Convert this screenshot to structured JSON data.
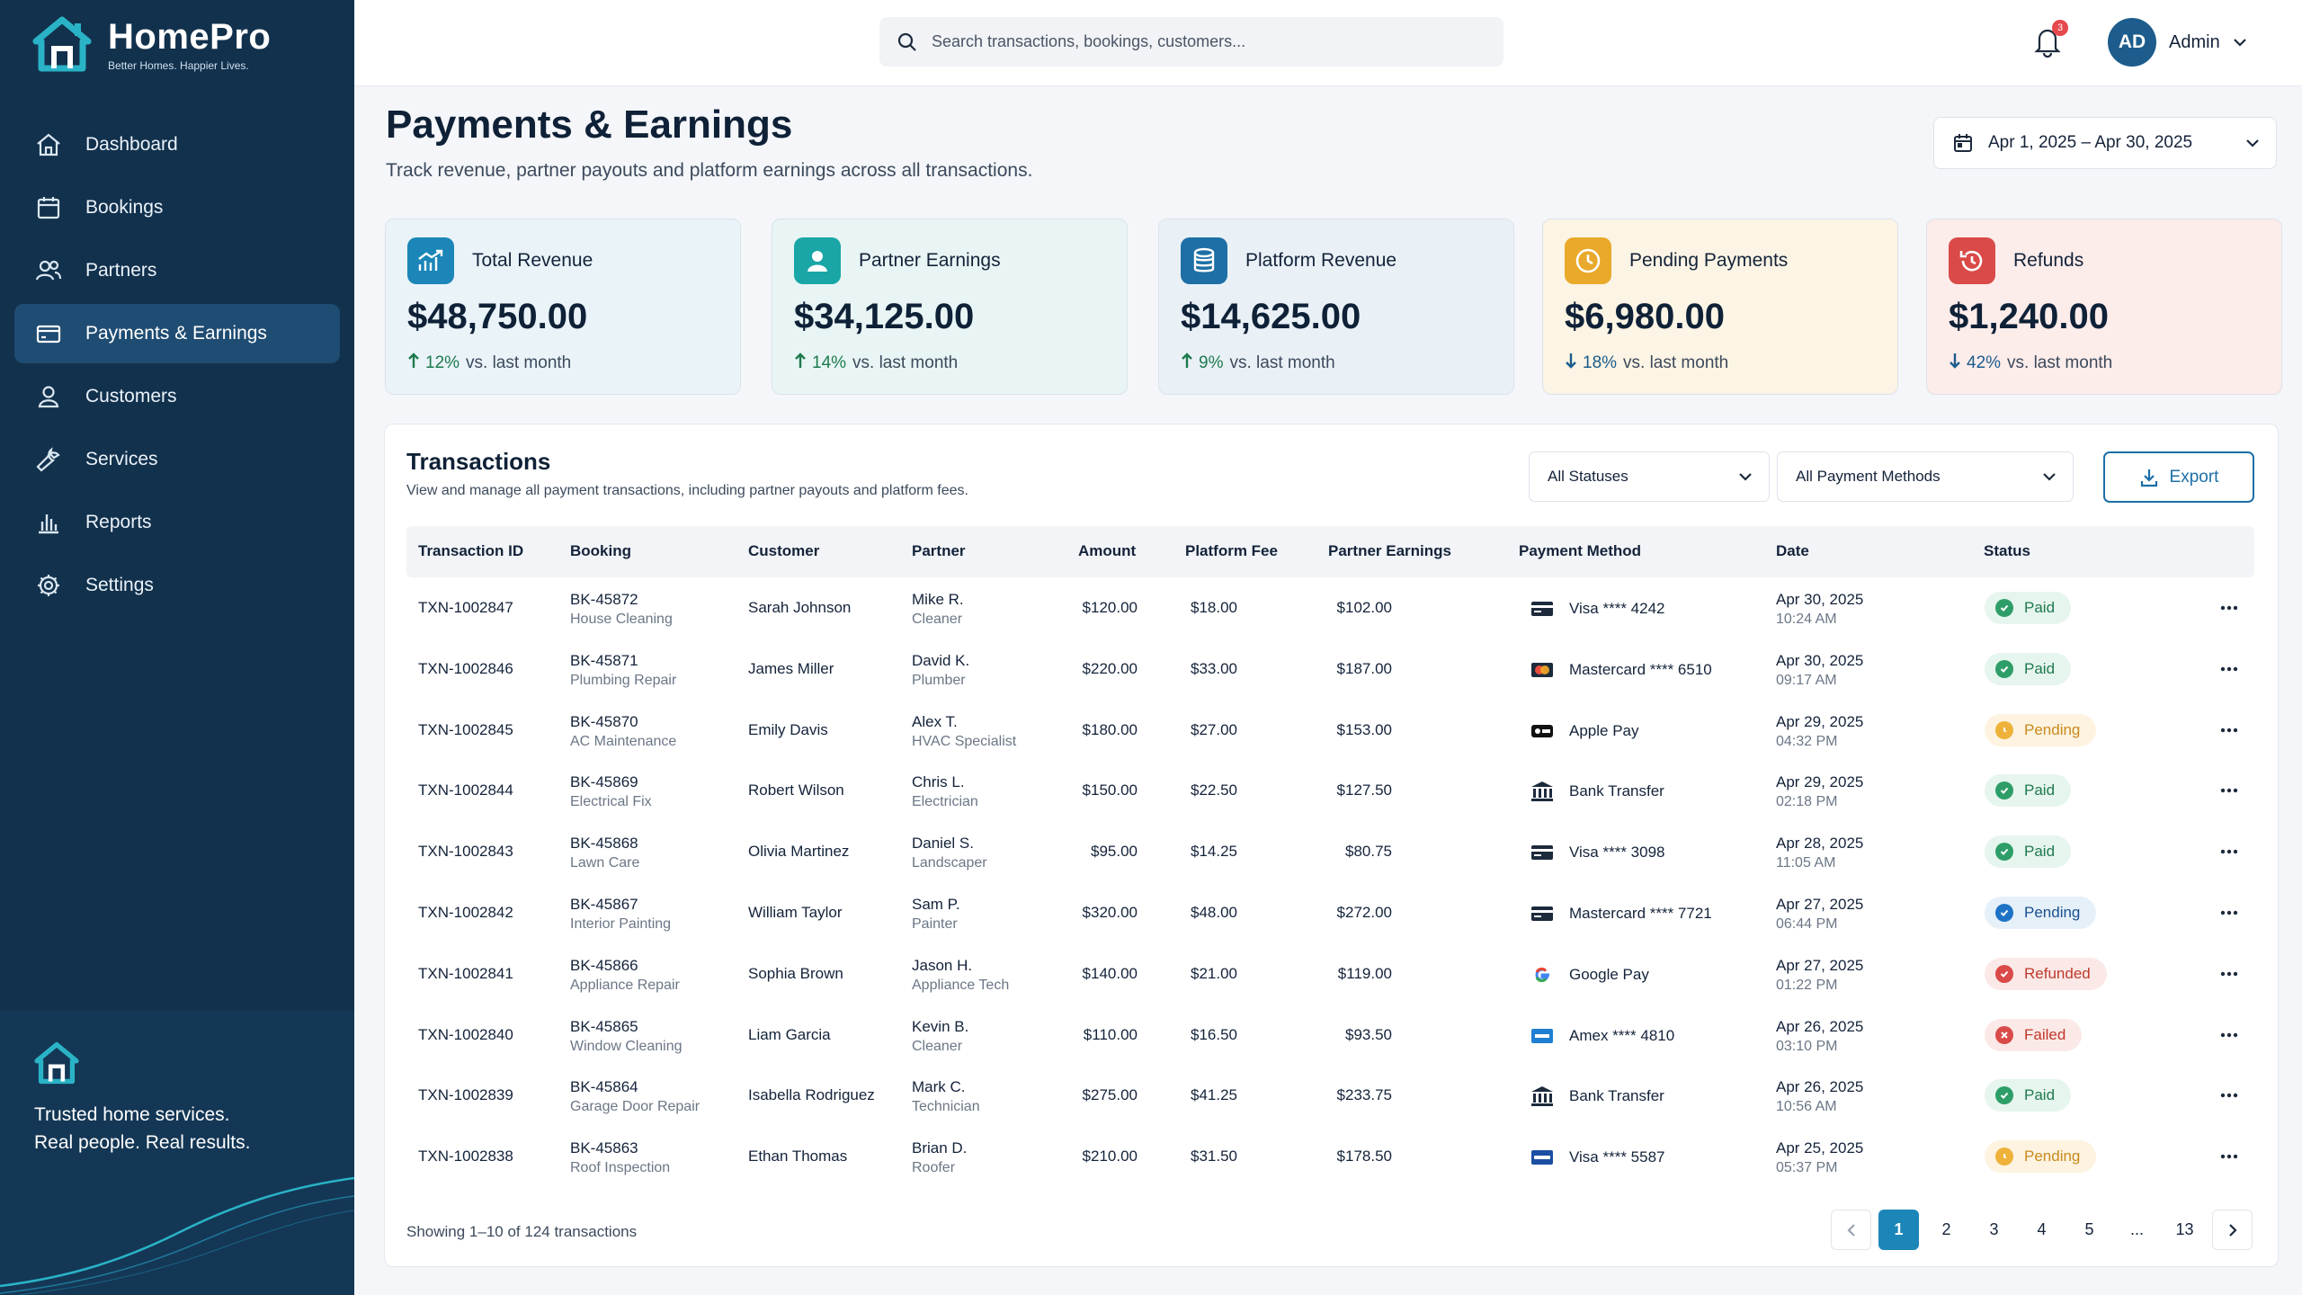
{
  "app": {
    "name": "HomePro",
    "tagline": "Better Homes. Happier Lives."
  },
  "sidebar": {
    "items": [
      {
        "label": "Dashboard",
        "icon": "home-icon",
        "active": false
      },
      {
        "label": "Bookings",
        "icon": "calendar-icon",
        "active": false
      },
      {
        "label": "Partners",
        "icon": "users-icon",
        "active": false
      },
      {
        "label": "Payments & Earnings",
        "icon": "credit-card-icon",
        "active": true
      },
      {
        "label": "Customers",
        "icon": "user-icon",
        "active": false
      },
      {
        "label": "Services",
        "icon": "wrench-icon",
        "active": false
      },
      {
        "label": "Reports",
        "icon": "bar-chart-icon",
        "active": false
      },
      {
        "label": "Settings",
        "icon": "gear-icon",
        "active": false
      }
    ],
    "footer_line1": "Trusted home services.",
    "footer_line2": "Real people. Real results."
  },
  "header": {
    "search_placeholder": "Search transactions, bookings, customers...",
    "notifications_count": "3",
    "user_initials": "AD",
    "user_name": "Admin"
  },
  "page": {
    "title": "Payments & Earnings",
    "subtitle": "Track revenue, partner payouts and platform earnings across all transactions.",
    "date_range": "Apr 1, 2025 – Apr 30, 2025"
  },
  "kpis": [
    {
      "label": "Total Revenue",
      "value": "$48,750.00",
      "pct": "12%",
      "rest": "vs. last month",
      "direction": "up",
      "icon": "chart-up-icon",
      "accent": "#1c86b8",
      "bg": "#e9f3f8"
    },
    {
      "label": "Partner Earnings",
      "value": "$34,125.00",
      "pct": "14%",
      "rest": "vs. last month",
      "direction": "up",
      "icon": "user-icon",
      "accent": "#1aa6a6",
      "bg": "#e8f5f4"
    },
    {
      "label": "Platform Revenue",
      "value": "$14,625.00",
      "pct": "9%",
      "rest": "vs. last month",
      "direction": "up",
      "icon": "database-icon",
      "accent": "#1d6fa5",
      "bg": "#e9f1f7"
    },
    {
      "label": "Pending Payments",
      "value": "$6,980.00",
      "pct": "18%",
      "rest": "vs. last month",
      "direction": "down",
      "icon": "clock-icon",
      "accent": "#e9a92a",
      "bg": "#fcf4e4"
    },
    {
      "label": "Refunds",
      "value": "$1,240.00",
      "pct": "42%",
      "rest": "vs. last month",
      "direction": "down",
      "icon": "refund-icon",
      "accent": "#d94a48",
      "bg": "#fcecea"
    }
  ],
  "transactions": {
    "title": "Transactions",
    "subtitle": "View and manage all payment transactions, including partner payouts and platform fees.",
    "status_filter": "All Statuses",
    "method_filter": "All Payment Methods",
    "export_label": "Export",
    "columns": [
      "Transaction ID",
      "Booking",
      "Customer",
      "Partner",
      "Amount",
      "Platform Fee",
      "Partner Earnings",
      "Payment Method",
      "Date",
      "Status"
    ],
    "rows": [
      {
        "id": "TXN-1002847",
        "booking": "BK-45872",
        "service": "House Cleaning",
        "customer": "Sarah Johnson",
        "partner": "Mike R.",
        "role": "Cleaner",
        "amount": "$120.00",
        "fee": "$18.00",
        "earnings": "$102.00",
        "method": "Visa **** 4242",
        "method_icon": "card-icon",
        "date": "Apr 30, 2025",
        "time": "10:24 AM",
        "status": "Paid",
        "status_type": "paid"
      },
      {
        "id": "TXN-1002846",
        "booking": "BK-45871",
        "service": "Plumbing Repair",
        "customer": "James Miller",
        "partner": "David K.",
        "role": "Plumber",
        "amount": "$220.00",
        "fee": "$33.00",
        "earnings": "$187.00",
        "method": "Mastercard **** 6510",
        "method_icon": "mastercard-icon",
        "date": "Apr 30, 2025",
        "time": "09:17 AM",
        "status": "Paid",
        "status_type": "paid"
      },
      {
        "id": "TXN-1002845",
        "booking": "BK-45870",
        "service": "AC Maintenance",
        "customer": "Emily Davis",
        "partner": "Alex T.",
        "role": "HVAC Specialist",
        "amount": "$180.00",
        "fee": "$27.00",
        "earnings": "$153.00",
        "method": "Apple Pay",
        "method_icon": "apple-pay-icon",
        "date": "Apr 29, 2025",
        "time": "04:32 PM",
        "status": "Pending",
        "status_type": "pending"
      },
      {
        "id": "TXN-1002844",
        "booking": "BK-45869",
        "service": "Electrical Fix",
        "customer": "Robert Wilson",
        "partner": "Chris L.",
        "role": "Electrician",
        "amount": "$150.00",
        "fee": "$22.50",
        "earnings": "$127.50",
        "method": "Bank Transfer",
        "method_icon": "bank-icon",
        "date": "Apr 29, 2025",
        "time": "02:18 PM",
        "status": "Paid",
        "status_type": "paid"
      },
      {
        "id": "TXN-1002843",
        "booking": "BK-45868",
        "service": "Lawn Care",
        "customer": "Olivia Martinez",
        "partner": "Daniel S.",
        "role": "Landscaper",
        "amount": "$95.00",
        "fee": "$14.25",
        "earnings": "$80.75",
        "method": "Visa **** 3098",
        "method_icon": "card-icon",
        "date": "Apr 28, 2025",
        "time": "11:05 AM",
        "status": "Paid",
        "status_type": "paid"
      },
      {
        "id": "TXN-1002842",
        "booking": "BK-45867",
        "service": "Interior Painting",
        "customer": "William Taylor",
        "partner": "Sam P.",
        "role": "Painter",
        "amount": "$320.00",
        "fee": "$48.00",
        "earnings": "$272.00",
        "method": "Mastercard **** 7721",
        "method_icon": "card-icon",
        "date": "Apr 27, 2025",
        "time": "06:44 PM",
        "status": "Pending",
        "status_type": "pending-blue"
      },
      {
        "id": "TXN-1002841",
        "booking": "BK-45866",
        "service": "Appliance Repair",
        "customer": "Sophia Brown",
        "partner": "Jason H.",
        "role": "Appliance Tech",
        "amount": "$140.00",
        "fee": "$21.00",
        "earnings": "$119.00",
        "method": "Google Pay",
        "method_icon": "google-pay-icon",
        "date": "Apr 27, 2025",
        "time": "01:22 PM",
        "status": "Refunded",
        "status_type": "refunded"
      },
      {
        "id": "TXN-1002840",
        "booking": "BK-45865",
        "service": "Window Cleaning",
        "customer": "Liam Garcia",
        "partner": "Kevin B.",
        "role": "Cleaner",
        "amount": "$110.00",
        "fee": "$16.50",
        "earnings": "$93.50",
        "method": "Amex **** 4810",
        "method_icon": "amex-icon",
        "date": "Apr 26, 2025",
        "time": "03:10 PM",
        "status": "Failed",
        "status_type": "failed"
      },
      {
        "id": "TXN-1002839",
        "booking": "BK-45864",
        "service": "Garage Door Repair",
        "customer": "Isabella Rodriguez",
        "partner": "Mark C.",
        "role": "Technician",
        "amount": "$275.00",
        "fee": "$41.25",
        "earnings": "$233.75",
        "method": "Bank Transfer",
        "method_icon": "bank-icon",
        "date": "Apr 26, 2025",
        "time": "10:56 AM",
        "status": "Paid",
        "status_type": "paid"
      },
      {
        "id": "TXN-1002838",
        "booking": "BK-45863",
        "service": "Roof Inspection",
        "customer": "Ethan Thomas",
        "partner": "Brian D.",
        "role": "Roofer",
        "amount": "$210.00",
        "fee": "$31.50",
        "earnings": "$178.50",
        "method": "Visa **** 5587",
        "method_icon": "visa-blue-icon",
        "date": "Apr 25, 2025",
        "time": "05:37 PM",
        "status": "Pending",
        "status_type": "pending"
      }
    ],
    "showing": "Showing 1–10 of 124 transactions",
    "pages": [
      "1",
      "2",
      "3",
      "4",
      "5",
      "...",
      "13"
    ],
    "current_page": "1"
  }
}
